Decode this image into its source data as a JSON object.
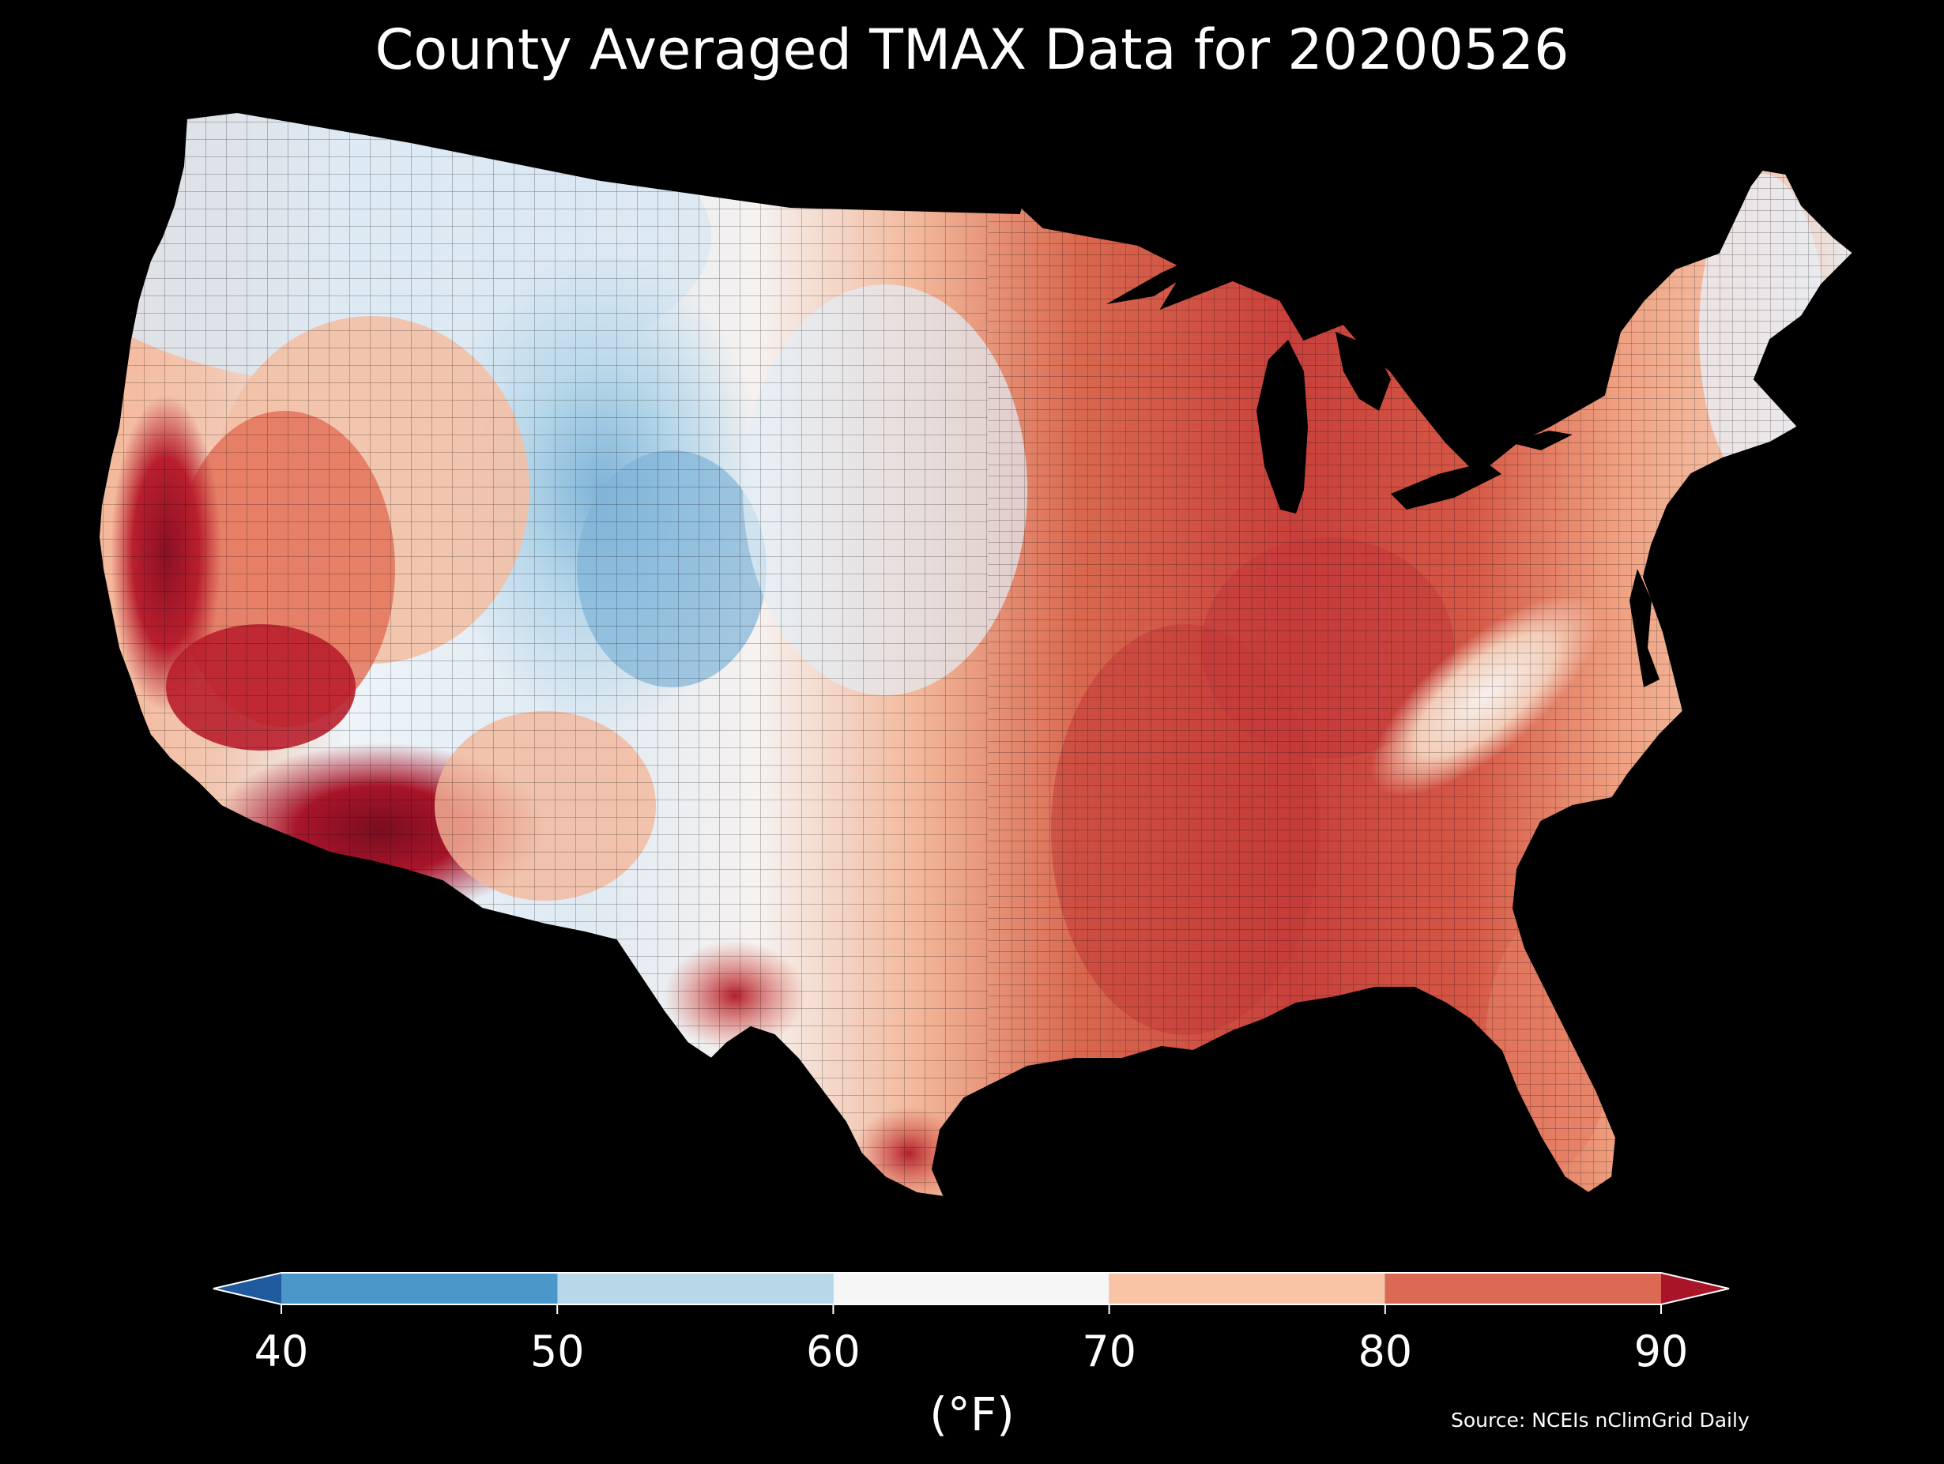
{
  "title": "County Averaged TMAX Data for 20200526",
  "colorbar": {
    "unit": "(°F)",
    "ticks": [
      "40",
      "50",
      "60",
      "70",
      "80",
      "90"
    ],
    "tick_values": [
      40,
      50,
      60,
      70,
      80,
      90
    ],
    "bins": [
      {
        "from": 30,
        "to": 40,
        "color": "#1f5a9e"
      },
      {
        "from": 40,
        "to": 50,
        "color": "#4b97c9"
      },
      {
        "from": 50,
        "to": 60,
        "color": "#b8d8ea"
      },
      {
        "from": 60,
        "to": 70,
        "color": "#f7f6f6"
      },
      {
        "from": 70,
        "to": 80,
        "color": "#f9c3a6"
      },
      {
        "from": 80,
        "to": 90,
        "color": "#dc6954"
      },
      {
        "from": 90,
        "to": 100,
        "color": "#a81529"
      }
    ],
    "extend": "both"
  },
  "source": "Source: NCEIs nClimGrid Daily",
  "map": {
    "region": "contiguous-us-counties",
    "variable": "TMAX",
    "background_color": "#000000"
  }
}
